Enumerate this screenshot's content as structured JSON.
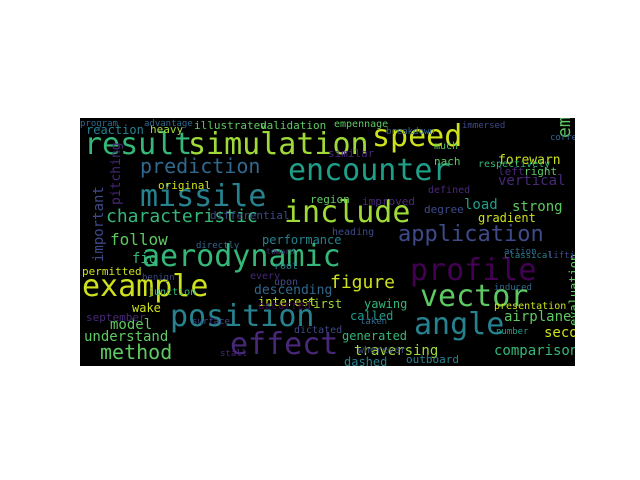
{
  "palette": {
    "teal": "#35b779",
    "green": "#5ec962",
    "lime": "#a0da39",
    "yellow": "#cde11d",
    "aqua": "#1f9e89",
    "cyan": "#26828e",
    "blue": "#31688e",
    "indigo": "#3e4a89",
    "purple": "#482878",
    "violet": "#440154"
  },
  "words": [
    "result",
    "simulation",
    "speed",
    "encounter",
    "missile",
    "include",
    "prediction",
    "characteristic",
    "application",
    "aerodynamic",
    "profile",
    "example",
    "vector",
    "position",
    "angle",
    "effect",
    "method",
    "figure",
    "follow",
    "fig",
    "load",
    "strong",
    "gradient",
    "emission",
    "forewarn",
    "vertical",
    "right",
    "left",
    "respectively",
    "reaction",
    "heavy",
    "important",
    "original",
    "performance",
    "descending",
    "interest",
    "first",
    "yawing",
    "region",
    "improved",
    "degree",
    "defined",
    "model",
    "understand",
    "wake",
    "permitted",
    "junction",
    "comparison",
    "traversing",
    "dashed",
    "generated",
    "called",
    "airplane",
    "second",
    "evaluation",
    "presentation",
    "outboard",
    "similar",
    "occurred",
    "validation",
    "empennage",
    "illustrated",
    "september",
    "upon",
    "wherever",
    "dictated",
    "taken",
    "pitching",
    "nach",
    "much",
    "heading",
    "differential",
    "root",
    "every",
    "breakdown",
    "classical",
    "stall",
    "surface",
    "correspond",
    "lifting",
    "program",
    "advantage",
    "immersed",
    "induced",
    "number",
    "action",
    "benign",
    "toward",
    "directly"
  ]
}
